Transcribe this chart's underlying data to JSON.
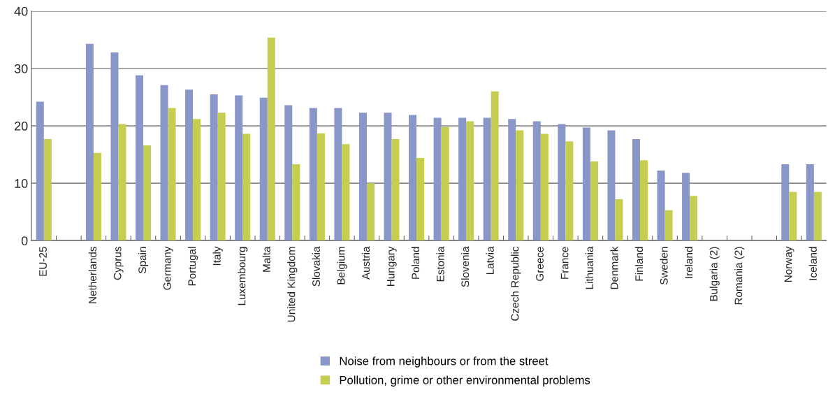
{
  "chart_data": {
    "type": "bar",
    "categories": [
      "EU-25",
      null,
      "Netherlands",
      "Cyprus",
      "Spain",
      "Germany",
      "Portugal",
      "Italy",
      "Luxembourg",
      "Malta",
      "United Kingdom",
      "Slovakia",
      "Belgium",
      "Austria",
      "Hungary",
      "Poland",
      "Estonia",
      "Slovenia",
      "Latvia",
      "Czech Republic",
      "Greece",
      "France",
      "Lithuania",
      "Denmark",
      "Finland",
      "Sweden",
      "Ireland",
      "Bulgaria (2)",
      "Romania (2)",
      null,
      "Norway",
      "Iceland"
    ],
    "series": [
      {
        "name": "Noise from neighbours or from the street",
        "color": "#8896c8",
        "values": [
          24.2,
          null,
          34.3,
          32.8,
          28.8,
          27.1,
          26.3,
          25.5,
          25.3,
          24.9,
          23.6,
          23.1,
          23.1,
          22.3,
          22.3,
          21.9,
          21.4,
          21.4,
          21.4,
          21.2,
          20.8,
          20.3,
          19.7,
          19.2,
          17.7,
          12.2,
          11.8,
          null,
          null,
          null,
          13.3,
          13.3
        ]
      },
      {
        "name": "Pollution, grime or other environmental problems",
        "color": "#c5ce4e",
        "values": [
          17.7,
          null,
          15.3,
          20.3,
          16.6,
          23.1,
          21.2,
          22.3,
          18.6,
          35.4,
          13.3,
          18.7,
          16.8,
          10.0,
          17.7,
          14.4,
          19.8,
          20.8,
          26.0,
          19.2,
          18.6,
          17.3,
          13.8,
          7.2,
          14.0,
          5.3,
          7.8,
          null,
          null,
          null,
          8.5,
          8.5
        ]
      }
    ],
    "ylim": [
      0,
      40
    ],
    "yticks": [
      0,
      10,
      20,
      30,
      40
    ],
    "grid": "y",
    "legend": "bottom"
  }
}
